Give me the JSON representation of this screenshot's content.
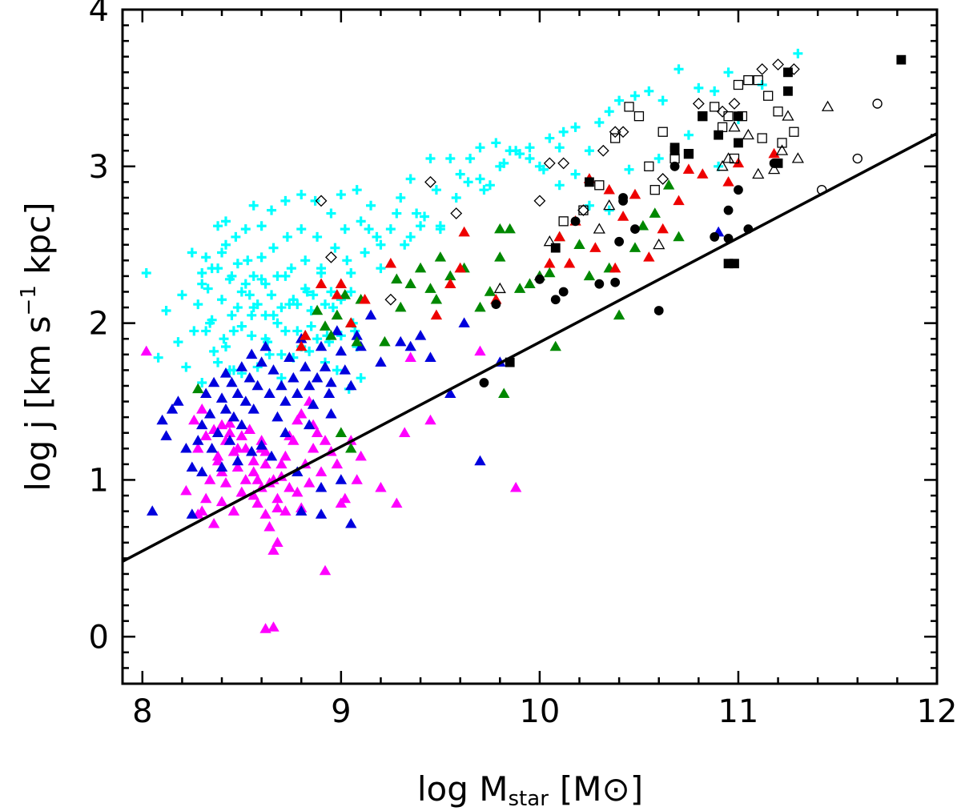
{
  "chart_data": {
    "type": "scatter",
    "title": "",
    "xlabel": "log M_star [M_sun]",
    "xlabel_parts": {
      "main": "log M",
      "sub": "star",
      "unit_open": "[M",
      "unit_close": "]"
    },
    "ylabel": "log j [km s^-1 kpc]",
    "ylabel_parts": {
      "pre": "log j [km s",
      "sup": "−1",
      "post": " kpc]"
    },
    "xlim": [
      7.9,
      12.0
    ],
    "ylim": [
      -0.3,
      4.0
    ],
    "xticks": [
      8,
      9,
      10,
      11,
      12
    ],
    "xtick_labels": [
      "8",
      "9",
      "10",
      "11",
      "12"
    ],
    "yticks": [
      0,
      1,
      2,
      3,
      4
    ],
    "ytick_labels": [
      "0",
      "1",
      "2",
      "3",
      "4"
    ],
    "grid": false,
    "fit_line": {
      "x": [
        7.9,
        12.0
      ],
      "y": [
        0.48,
        3.21
      ]
    },
    "colors": {
      "cyan": "#00ffff",
      "magenta": "#ff00ff",
      "blue": "#0000dd",
      "green": "#008800",
      "red": "#ee0000",
      "black": "#000000"
    },
    "series": [
      {
        "name": "cyan plus",
        "marker": "plus",
        "color": "#00ffff",
        "filled": false,
        "x": [
          8.02,
          8.08,
          8.12,
          8.18,
          8.2,
          8.22,
          8.25,
          8.26,
          8.28,
          8.3,
          8.3,
          8.32,
          8.33,
          8.35,
          8.36,
          8.38,
          8.38,
          8.4,
          8.41,
          8.42,
          8.42,
          8.44,
          8.45,
          8.46,
          8.47,
          8.48,
          8.5,
          8.5,
          8.52,
          8.53,
          8.54,
          8.55,
          8.56,
          8.56,
          8.58,
          8.6,
          8.6,
          8.62,
          8.62,
          8.63,
          8.65,
          8.66,
          8.68,
          8.7,
          8.7,
          8.72,
          8.73,
          8.75,
          8.76,
          8.78,
          8.8,
          8.8,
          8.82,
          8.83,
          8.85,
          8.87,
          8.88,
          8.9,
          8.92,
          8.93,
          8.95,
          8.97,
          9.0,
          9.02,
          9.03,
          9.05,
          9.07,
          9.08,
          9.1,
          9.12,
          9.15,
          9.18,
          9.2,
          9.25,
          9.3,
          9.32,
          9.35,
          9.38,
          9.4,
          9.45,
          9.48,
          9.5,
          9.55,
          9.6,
          9.65,
          9.7,
          9.72,
          9.78,
          9.8,
          9.85,
          9.9,
          9.95,
          10.0,
          10.05,
          10.1,
          10.12,
          10.18,
          10.25,
          10.3,
          10.35,
          10.4,
          10.48,
          10.55,
          10.62,
          10.7,
          10.8,
          10.88,
          10.95,
          11.12,
          11.3,
          8.3,
          8.35,
          8.4,
          8.45,
          8.48,
          8.52,
          8.55,
          8.6,
          8.65,
          8.68,
          8.72,
          8.78,
          8.82,
          8.85,
          8.9,
          8.95,
          9.0,
          9.05,
          8.38,
          8.44,
          8.5,
          8.58,
          8.64,
          8.7,
          8.76,
          8.84,
          8.92,
          8.98,
          9.04,
          9.1,
          8.32,
          8.42,
          8.5,
          8.62,
          8.72,
          8.8,
          8.88,
          8.94,
          9.0,
          9.08,
          8.34,
          8.46,
          8.56,
          8.66,
          8.74,
          8.86,
          8.96,
          9.06,
          9.14,
          9.2,
          9.28,
          9.35,
          9.42,
          9.5,
          9.58,
          9.64,
          9.7,
          9.75,
          9.82,
          9.88,
          9.95,
          10.02,
          10.1,
          10.18,
          10.25,
          10.35,
          10.45,
          10.6,
          10.75,
          10.9,
          11.0
        ],
        "y": [
          2.32,
          1.78,
          2.08,
          1.88,
          2.18,
          1.72,
          2.45,
          1.95,
          2.12,
          2.32,
          1.62,
          2.42,
          2.22,
          2.02,
          1.82,
          2.62,
          2.35,
          2.15,
          1.9,
          2.65,
          2.5,
          2.28,
          2.05,
          1.7,
          2.55,
          2.38,
          2.2,
          1.98,
          2.6,
          2.4,
          2.18,
          1.92,
          2.75,
          2.3,
          2.12,
          2.62,
          2.42,
          2.25,
          2.05,
          1.88,
          2.72,
          2.48,
          2.3,
          2.1,
          1.8,
          2.78,
          2.55,
          2.35,
          2.15,
          1.95,
          2.82,
          2.6,
          2.4,
          2.2,
          1.98,
          2.78,
          2.55,
          2.35,
          2.12,
          1.92,
          2.7,
          2.48,
          2.82,
          2.6,
          2.4,
          2.2,
          1.95,
          2.85,
          2.65,
          2.45,
          2.75,
          2.55,
          2.35,
          2.6,
          2.8,
          2.5,
          2.92,
          2.7,
          2.62,
          3.05,
          2.85,
          2.6,
          3.05,
          2.95,
          3.05,
          3.12,
          2.85,
          3.15,
          3.0,
          3.1,
          3.08,
          3.12,
          3.0,
          3.18,
          3.12,
          3.22,
          3.25,
          3.1,
          3.28,
          3.35,
          3.42,
          3.45,
          3.48,
          3.42,
          3.62,
          3.5,
          3.48,
          3.6,
          3.52,
          3.72,
          2.25,
          2.35,
          2.45,
          2.3,
          2.1,
          2.25,
          2.05,
          2.28,
          2.18,
          2.0,
          2.3,
          2.12,
          2.22,
          2.08,
          2.32,
          2.2,
          2.15,
          2.32,
          1.75,
          1.7,
          1.68,
          1.72,
          1.8,
          1.65,
          1.78,
          1.82,
          1.75,
          1.7,
          1.58,
          1.65,
          1.95,
          1.85,
          1.98,
          1.9,
          1.95,
          1.85,
          1.9,
          1.88,
          1.92,
          1.85,
          2.0,
          1.95,
          2.1,
          2.05,
          2.12,
          2.18,
          2.1,
          2.0,
          2.6,
          2.5,
          2.7,
          2.55,
          2.68,
          2.62,
          2.8,
          2.9,
          2.92,
          2.88,
          3.02,
          3.1,
          3.05,
          2.98,
          2.88,
          2.95,
          2.75,
          2.72,
          2.98,
          3.05,
          3.2,
          3.0,
          3.3
        ]
      },
      {
        "name": "magenta triangles",
        "marker": "triangle",
        "color": "#ff00ff",
        "filled": true,
        "x": [
          8.02,
          8.22,
          8.26,
          8.28,
          8.3,
          8.32,
          8.34,
          8.36,
          8.36,
          8.38,
          8.4,
          8.4,
          8.42,
          8.42,
          8.44,
          8.46,
          8.46,
          8.48,
          8.5,
          8.5,
          8.52,
          8.52,
          8.54,
          8.56,
          8.56,
          8.58,
          8.58,
          8.6,
          8.6,
          8.62,
          8.62,
          8.64,
          8.64,
          8.66,
          8.66,
          8.68,
          8.68,
          8.7,
          8.72,
          8.72,
          8.74,
          8.76,
          8.78,
          8.8,
          8.82,
          8.84,
          8.86,
          8.88,
          8.9,
          8.92,
          8.95,
          8.98,
          9.0,
          9.02,
          9.05,
          9.08,
          9.1,
          9.2,
          9.28,
          9.32,
          9.35,
          9.45,
          9.7,
          9.88,
          8.62,
          8.66,
          8.28,
          8.32,
          8.38,
          8.44,
          8.5,
          8.56,
          8.62,
          8.68,
          8.74,
          8.8,
          8.86,
          8.92,
          8.3,
          8.4,
          8.48,
          8.54,
          8.6,
          8.7,
          8.78,
          8.84
        ],
        "y": [
          1.82,
          0.93,
          1.38,
          1.2,
          0.8,
          1.28,
          1.0,
          1.32,
          0.72,
          1.15,
          1.05,
          0.86,
          1.25,
          0.98,
          1.36,
          1.18,
          0.8,
          1.08,
          1.28,
          0.92,
          1.2,
          1.0,
          1.32,
          0.9,
          1.12,
          1.0,
          0.85,
          1.2,
          0.95,
          1.1,
          0.78,
          0.98,
          0.7,
          1.0,
          0.55,
          0.88,
          0.6,
          1.02,
          1.15,
          0.8,
          0.95,
          1.25,
          0.92,
          0.82,
          1.1,
          0.98,
          1.2,
          1.3,
          1.05,
          0.42,
          1.18,
          1.1,
          0.85,
          0.88,
          1.25,
          1.0,
          1.15,
          0.95,
          0.85,
          1.3,
          1.78,
          1.38,
          1.82,
          0.95,
          0.05,
          0.06,
          0.78,
          0.88,
          1.12,
          1.3,
          0.92,
          1.05,
          1.18,
          0.82,
          1.28,
          1.42,
          1.35,
          1.25,
          1.45,
          1.35,
          1.2,
          1.32,
          1.25,
          1.1,
          1.38,
          1.5
        ]
      },
      {
        "name": "blue triangles",
        "marker": "triangle",
        "color": "#0000dd",
        "filled": true,
        "x": [
          8.05,
          8.1,
          8.12,
          8.15,
          8.18,
          8.22,
          8.25,
          8.25,
          8.28,
          8.3,
          8.3,
          8.32,
          8.34,
          8.35,
          8.36,
          8.38,
          8.4,
          8.42,
          8.42,
          8.44,
          8.45,
          8.46,
          8.48,
          8.5,
          8.5,
          8.52,
          8.54,
          8.55,
          8.56,
          8.58,
          8.6,
          8.62,
          8.64,
          8.66,
          8.68,
          8.7,
          8.72,
          8.74,
          8.76,
          8.78,
          8.8,
          8.82,
          8.84,
          8.86,
          8.88,
          8.9,
          8.92,
          8.94,
          8.95,
          8.98,
          9.0,
          9.02,
          9.05,
          9.08,
          9.1,
          9.15,
          9.2,
          9.3,
          9.35,
          9.4,
          9.45,
          9.55,
          9.62,
          9.7,
          9.8,
          10.9,
          8.8,
          8.9,
          8.4,
          8.48,
          8.55,
          8.6,
          8.65,
          8.72,
          8.78,
          8.84,
          8.9,
          8.95,
          9.0,
          9.05
        ],
        "y": [
          0.8,
          1.38,
          1.28,
          1.45,
          1.5,
          1.2,
          0.78,
          1.08,
          1.25,
          1.35,
          1.05,
          1.55,
          1.42,
          1.2,
          1.62,
          1.3,
          1.52,
          1.68,
          1.45,
          1.25,
          1.62,
          1.4,
          1.55,
          1.72,
          1.35,
          1.5,
          1.65,
          1.8,
          1.45,
          1.6,
          1.75,
          1.85,
          1.55,
          1.7,
          1.4,
          1.6,
          1.5,
          1.78,
          1.65,
          1.55,
          1.9,
          1.72,
          1.6,
          1.48,
          1.65,
          1.85,
          1.72,
          1.55,
          1.62,
          1.95,
          1.82,
          1.7,
          1.6,
          1.92,
          1.85,
          2.05,
          1.75,
          1.88,
          1.85,
          1.92,
          1.78,
          1.55,
          2.0,
          1.12,
          1.75,
          2.58,
          0.8,
          0.95,
          1.08,
          1.12,
          1.18,
          1.22,
          1.15,
          1.3,
          1.05,
          1.35,
          0.78,
          1.42,
          1.0,
          0.72
        ]
      },
      {
        "name": "green triangles",
        "marker": "triangle",
        "color": "#008800",
        "filled": true,
        "x": [
          8.28,
          8.82,
          8.88,
          8.92,
          8.95,
          8.98,
          9.02,
          9.05,
          9.08,
          9.1,
          9.22,
          9.28,
          9.3,
          9.35,
          9.4,
          9.45,
          9.48,
          9.5,
          9.55,
          9.62,
          9.7,
          9.75,
          9.8,
          9.82,
          9.85,
          9.9,
          9.95,
          10.0,
          10.05,
          10.08,
          10.1,
          10.2,
          10.25,
          10.35,
          10.4,
          10.48,
          10.52,
          10.58,
          10.65,
          10.7,
          9.8,
          9.05,
          9.0
        ],
        "y": [
          1.58,
          1.92,
          2.08,
          1.98,
          1.92,
          2.05,
          2.18,
          2.0,
          1.88,
          2.15,
          1.88,
          2.28,
          2.1,
          2.25,
          2.35,
          2.22,
          2.15,
          2.42,
          2.3,
          2.35,
          2.1,
          2.2,
          2.42,
          1.55,
          2.6,
          2.22,
          2.25,
          2.3,
          2.32,
          1.85,
          2.55,
          2.5,
          2.3,
          2.35,
          2.05,
          2.48,
          2.62,
          2.7,
          2.88,
          2.55,
          2.6,
          1.2,
          1.3
        ]
      },
      {
        "name": "red triangles",
        "marker": "triangle",
        "color": "#ee0000",
        "filled": true,
        "x": [
          8.8,
          8.9,
          9.0,
          9.05,
          9.12,
          9.25,
          9.48,
          9.55,
          9.62,
          9.78,
          10.05,
          10.1,
          10.15,
          10.18,
          10.25,
          10.28,
          10.35,
          10.38,
          10.42,
          10.48,
          10.55,
          10.62,
          10.7,
          10.75,
          10.82,
          10.95,
          11.0,
          11.18,
          8.82,
          8.98,
          9.6
        ],
        "y": [
          1.85,
          2.25,
          2.25,
          2.0,
          2.15,
          2.38,
          2.05,
          2.25,
          2.58,
          2.15,
          2.38,
          2.55,
          2.38,
          2.65,
          2.92,
          2.48,
          2.85,
          2.35,
          2.68,
          2.82,
          2.42,
          2.6,
          2.78,
          2.98,
          2.95,
          2.9,
          3.02,
          3.08,
          1.92,
          2.18,
          2.35
        ]
      },
      {
        "name": "black filled circles",
        "marker": "circle",
        "color": "#000000",
        "filled": true,
        "x": [
          9.72,
          9.78,
          10.0,
          10.08,
          10.12,
          10.18,
          10.3,
          10.4,
          10.42,
          10.48,
          10.6,
          10.68,
          10.88,
          10.95,
          11.0,
          11.05,
          11.18,
          10.95,
          10.42,
          10.38
        ],
        "y": [
          1.62,
          2.12,
          2.28,
          2.15,
          2.2,
          2.65,
          2.25,
          2.52,
          2.8,
          2.6,
          2.08,
          3.0,
          2.55,
          2.54,
          2.85,
          2.6,
          3.02,
          2.72,
          2.78,
          2.26
        ]
      },
      {
        "name": "black filled squares",
        "marker": "square",
        "color": "#000000",
        "filled": true,
        "x": [
          9.85,
          10.08,
          10.25,
          10.68,
          10.75,
          10.82,
          10.9,
          10.98,
          11.0,
          11.2,
          11.25,
          11.25,
          11.82,
          10.68,
          10.95,
          11.0
        ],
        "y": [
          1.75,
          2.48,
          2.9,
          3.1,
          3.08,
          3.32,
          3.2,
          2.38,
          3.15,
          3.02,
          3.48,
          3.6,
          3.68,
          3.12,
          2.38,
          3.32
        ]
      },
      {
        "name": "open squares",
        "marker": "square",
        "color": "#000000",
        "filled": false,
        "x": [
          10.12,
          10.22,
          10.3,
          10.38,
          10.45,
          10.5,
          10.55,
          10.58,
          10.62,
          10.68,
          10.75,
          10.82,
          10.88,
          10.92,
          10.95,
          10.98,
          11.0,
          11.02,
          11.05,
          11.1,
          11.12,
          11.15,
          11.2,
          11.22,
          11.28
        ],
        "y": [
          2.65,
          2.72,
          2.88,
          3.18,
          3.38,
          3.32,
          3.0,
          2.85,
          3.22,
          3.05,
          3.08,
          3.32,
          3.38,
          3.25,
          3.32,
          3.05,
          3.52,
          3.32,
          3.55,
          3.55,
          3.18,
          3.45,
          3.35,
          3.15,
          3.22
        ]
      },
      {
        "name": "open diamonds",
        "marker": "diamond",
        "color": "#000000",
        "filled": false,
        "x": [
          8.9,
          8.95,
          9.25,
          9.45,
          9.58,
          10.0,
          10.05,
          10.12,
          10.22,
          10.32,
          10.38,
          10.42,
          10.62,
          10.8,
          10.92,
          10.98,
          11.12,
          11.2,
          11.28
        ],
        "y": [
          2.78,
          2.42,
          2.15,
          2.9,
          2.7,
          2.78,
          3.02,
          3.02,
          2.72,
          3.1,
          3.22,
          3.22,
          2.92,
          3.4,
          3.35,
          3.4,
          3.62,
          3.65,
          3.62
        ]
      },
      {
        "name": "open triangles",
        "marker": "triangle",
        "color": "#000000",
        "filled": false,
        "x": [
          9.8,
          10.05,
          10.3,
          10.35,
          10.6,
          10.92,
          10.95,
          10.98,
          11.05,
          11.18,
          11.22,
          11.25,
          11.3,
          11.45,
          11.1
        ],
        "y": [
          2.22,
          2.52,
          2.6,
          2.75,
          2.5,
          3.0,
          3.05,
          3.25,
          3.2,
          2.98,
          3.1,
          3.32,
          3.05,
          3.38,
          2.95
        ]
      },
      {
        "name": "open circles",
        "marker": "circle",
        "color": "#000000",
        "filled": false,
        "x": [
          11.42,
          11.6,
          11.7
        ],
        "y": [
          2.85,
          3.05,
          3.4
        ]
      }
    ]
  }
}
